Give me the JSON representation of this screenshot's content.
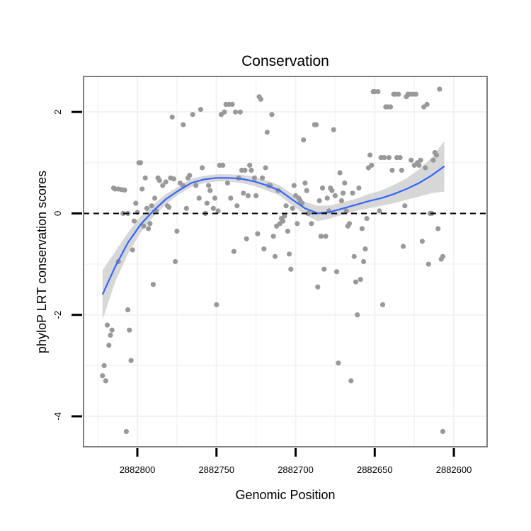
{
  "chart_data": {
    "type": "scatter",
    "title": "Conservation",
    "xlabel": "Genomic Position",
    "ylabel": "phyloP LRT conservation scores",
    "x_reversed": true,
    "xlim": [
      2882834,
      2882579
    ],
    "ylim": [
      -4.6,
      2.7
    ],
    "x_ticks": [
      2882800,
      2882750,
      2882700,
      2882650,
      2882600
    ],
    "x_tick_labels": [
      "2882800",
      "2882750",
      "2882700",
      "2882650",
      "2882600"
    ],
    "y_ticks": [
      2,
      0,
      -2,
      -4
    ],
    "y_tick_labels": [
      "2",
      "0",
      "-2",
      "-4"
    ],
    "reference_line": 0,
    "grid": true,
    "colors": {
      "points": "#999999",
      "smooth": "#3366ff",
      "band": "#d3d3d3",
      "panel_border": "#7f7f7f",
      "grid": "#f2f2f2"
    },
    "points": [
      [
        2882822,
        -3.2
      ],
      [
        2882821,
        -3.0
      ],
      [
        2882820,
        -3.3
      ],
      [
        2882819,
        -2.2
      ],
      [
        2882818,
        -2.6
      ],
      [
        2882817,
        -2.4
      ],
      [
        2882816,
        -2.3
      ],
      [
        2882815,
        0.5
      ],
      [
        2882814,
        0.48
      ],
      [
        2882812,
        0.48
      ],
      [
        2882810,
        0.47
      ],
      [
        2882808,
        0.46
      ],
      [
        2882812,
        -0.95
      ],
      [
        2882809,
        0.0
      ],
      [
        2882806,
        0.0
      ],
      [
        2882807,
        -4.3
      ],
      [
        2882806,
        -1.9
      ],
      [
        2882805,
        -2.3
      ],
      [
        2882804,
        -2.9
      ],
      [
        2882803,
        -0.72
      ],
      [
        2882802,
        -0.15
      ],
      [
        2882801,
        0.2
      ],
      [
        2882800,
        0.02
      ],
      [
        2882799,
        1.0
      ],
      [
        2882798,
        1.0
      ],
      [
        2882797,
        0.48
      ],
      [
        2882796,
        -0.25
      ],
      [
        2882795,
        0.7
      ],
      [
        2882794,
        0.1
      ],
      [
        2882793,
        -0.3
      ],
      [
        2882792,
        -0.2
      ],
      [
        2882791,
        0.15
      ],
      [
        2882790,
        -1.4
      ],
      [
        2882789,
        0.3
      ],
      [
        2882788,
        0.05
      ],
      [
        2882787,
        0.7
      ],
      [
        2882786,
        0.65
      ],
      [
        2882784,
        0.55
      ],
      [
        2882782,
        0.62
      ],
      [
        2882781,
        0.15
      ],
      [
        2882780,
        0.12
      ],
      [
        2882779,
        0.7
      ],
      [
        2882778,
        1.9
      ],
      [
        2882777,
        0.68
      ],
      [
        2882776,
        -0.95
      ],
      [
        2882775,
        -0.35
      ],
      [
        2882773,
        0.6
      ],
      [
        2882771,
        0.55
      ],
      [
        2882771,
        1.75
      ],
      [
        2882769,
        0.1
      ],
      [
        2882768,
        0.7
      ],
      [
        2882767,
        0.75
      ],
      [
        2882765,
        1.95
      ],
      [
        2882763,
        0.55
      ],
      [
        2882761,
        0.3
      ],
      [
        2882760,
        2.05
      ],
      [
        2882759,
        0.9
      ],
      [
        2882757,
        0.0
      ],
      [
        2882756,
        0.2
      ],
      [
        2882755,
        0.55
      ],
      [
        2882754,
        0.45
      ],
      [
        2882752,
        0.1
      ],
      [
        2882751,
        0.3
      ],
      [
        2882750,
        -1.8
      ],
      [
        2882749,
        0.05
      ],
      [
        2882748,
        0.95
      ],
      [
        2882747,
        1.95
      ],
      [
        2882746,
        0.95
      ],
      [
        2882745,
        2.0
      ],
      [
        2882744,
        2.15
      ],
      [
        2882743,
        0.6
      ],
      [
        2882742,
        2.15
      ],
      [
        2882741,
        0.3
      ],
      [
        2882740,
        2.15
      ],
      [
        2882739,
        -0.75
      ],
      [
        2882738,
        2.0
      ],
      [
        2882737,
        0.15
      ],
      [
        2882736,
        0.7
      ],
      [
        2882735,
        2.0
      ],
      [
        2882734,
        0.85
      ],
      [
        2882733,
        0.4
      ],
      [
        2882732,
        0.85
      ],
      [
        2882731,
        -0.5
      ],
      [
        2882730,
        0.35
      ],
      [
        2882729,
        0.95
      ],
      [
        2882728,
        0.85
      ],
      [
        2882726,
        0.7
      ],
      [
        2882725,
        0.35
      ],
      [
        2882724,
        -0.4
      ],
      [
        2882723,
        2.3
      ],
      [
        2882722,
        2.25
      ],
      [
        2882721,
        0.7
      ],
      [
        2882720,
        -0.7
      ],
      [
        2882719,
        0.9
      ],
      [
        2882718,
        1.6
      ],
      [
        2882717,
        0.55
      ],
      [
        2882716,
        0.55
      ],
      [
        2882715,
        1.95
      ],
      [
        2882714,
        -0.45
      ],
      [
        2882713,
        -0.85
      ],
      [
        2882712,
        -0.25
      ],
      [
        2882711,
        0.45
      ],
      [
        2882710,
        -0.2
      ],
      [
        2882709,
        -0.1
      ],
      [
        2882708,
        -0.15
      ],
      [
        2882707,
        -0.05
      ],
      [
        2882706,
        0.15
      ],
      [
        2882705,
        -0.35
      ],
      [
        2882704,
        -0.8
      ],
      [
        2882703,
        -1.1
      ],
      [
        2882702,
        0.1
      ],
      [
        2882701,
        0.55
      ],
      [
        2882700,
        0.35
      ],
      [
        2882699,
        -0.2
      ],
      [
        2882698,
        0.3
      ],
      [
        2882697,
        0.25
      ],
      [
        2882696,
        0.2
      ],
      [
        2882695,
        1.45
      ],
      [
        2882694,
        0.6
      ],
      [
        2882693,
        0.45
      ],
      [
        2882692,
        0.0
      ],
      [
        2882690,
        -0.2
      ],
      [
        2882688,
        1.75
      ],
      [
        2882687,
        1.75
      ],
      [
        2882686,
        -1.45
      ],
      [
        2882685,
        0.25
      ],
      [
        2882684,
        -0.45
      ],
      [
        2882683,
        0.5
      ],
      [
        2882682,
        -1.1
      ],
      [
        2882681,
        -0.45
      ],
      [
        2882680,
        0.3
      ],
      [
        2882679,
        0.05
      ],
      [
        2882678,
        0.5
      ],
      [
        2882677,
        0.45
      ],
      [
        2882676,
        1.65
      ],
      [
        2882675,
        0.35
      ],
      [
        2882674,
        -1.15
      ],
      [
        2882673,
        -2.95
      ],
      [
        2882672,
        0.8
      ],
      [
        2882671,
        0.25
      ],
      [
        2882670,
        0.4
      ],
      [
        2882669,
        0.6
      ],
      [
        2882668,
        0.05
      ],
      [
        2882667,
        -0.25
      ],
      [
        2882666,
        -0.2
      ],
      [
        2882665,
        -3.3
      ],
      [
        2882664,
        0.4
      ],
      [
        2882663,
        -0.85
      ],
      [
        2882662,
        -1.35
      ],
      [
        2882661,
        -2.0
      ],
      [
        2882660,
        0.5
      ],
      [
        2882659,
        -1.3
      ],
      [
        2882658,
        -0.3
      ],
      [
        2882657,
        -0.95
      ],
      [
        2882656,
        -0.7
      ],
      [
        2882655,
        -0.1
      ],
      [
        2882654,
        0.9
      ],
      [
        2882653,
        1.15
      ],
      [
        2882652,
        0.95
      ],
      [
        2882651,
        2.4
      ],
      [
        2882650,
        2.4
      ],
      [
        2882648,
        2.4
      ],
      [
        2882647,
        0.05
      ],
      [
        2882646,
        1.1
      ],
      [
        2882645,
        -1.8
      ],
      [
        2882644,
        1.1
      ],
      [
        2882643,
        2.1
      ],
      [
        2882642,
        2.1
      ],
      [
        2882641,
        1.1
      ],
      [
        2882640,
        2.1
      ],
      [
        2882639,
        0.85
      ],
      [
        2882638,
        2.35
      ],
      [
        2882637,
        2.35
      ],
      [
        2882636,
        1.1
      ],
      [
        2882635,
        2.35
      ],
      [
        2882634,
        1.1
      ],
      [
        2882633,
        0.85
      ],
      [
        2882632,
        -0.65
      ],
      [
        2882631,
        0.15
      ],
      [
        2882630,
        2.3
      ],
      [
        2882629,
        2.35
      ],
      [
        2882628,
        2.35
      ],
      [
        2882627,
        1.05
      ],
      [
        2882626,
        2.35
      ],
      [
        2882625,
        0.95
      ],
      [
        2882624,
        2.35
      ],
      [
        2882623,
        1.0
      ],
      [
        2882622,
        0.95
      ],
      [
        2882621,
        1.05
      ],
      [
        2882620,
        -0.55
      ],
      [
        2882619,
        2.1
      ],
      [
        2882618,
        0.9
      ],
      [
        2882617,
        2.15
      ],
      [
        2882616,
        -1.0
      ],
      [
        2882615,
        0.0
      ],
      [
        2882614,
        0.0
      ],
      [
        2882613,
        1.05
      ],
      [
        2882612,
        1.2
      ],
      [
        2882611,
        1.15
      ],
      [
        2882610,
        -0.3
      ],
      [
        2882609,
        2.45
      ],
      [
        2882608,
        -0.9
      ],
      [
        2882607,
        -0.85
      ],
      [
        2882607,
        -4.3
      ]
    ],
    "smooth": {
      "x": [
        2882822,
        2882814,
        2882806,
        2882798,
        2882790,
        2882782,
        2882774,
        2882766,
        2882758,
        2882750,
        2882742,
        2882734,
        2882726,
        2882718,
        2882710,
        2882702,
        2882694,
        2882686,
        2882678,
        2882670,
        2882662,
        2882654,
        2882646,
        2882638,
        2882630,
        2882622,
        2882614,
        2882606
      ],
      "y": [
        -1.6,
        -1.05,
        -0.58,
        -0.22,
        0.05,
        0.28,
        0.45,
        0.6,
        0.67,
        0.7,
        0.7,
        0.68,
        0.63,
        0.55,
        0.45,
        0.27,
        0.1,
        0.0,
        0.03,
        0.1,
        0.17,
        0.24,
        0.3,
        0.38,
        0.48,
        0.6,
        0.75,
        0.93
      ],
      "lower": [
        -2.1,
        -1.35,
        -0.8,
        -0.38,
        -0.07,
        0.18,
        0.37,
        0.52,
        0.6,
        0.63,
        0.63,
        0.6,
        0.54,
        0.45,
        0.35,
        0.16,
        -0.03,
        -0.15,
        -0.1,
        -0.02,
        0.05,
        0.1,
        0.15,
        0.2,
        0.27,
        0.33,
        0.4,
        0.43
      ],
      "upper": [
        -1.12,
        -0.75,
        -0.38,
        -0.06,
        0.17,
        0.38,
        0.53,
        0.68,
        0.74,
        0.77,
        0.77,
        0.76,
        0.72,
        0.65,
        0.55,
        0.38,
        0.23,
        0.15,
        0.16,
        0.22,
        0.29,
        0.38,
        0.45,
        0.56,
        0.69,
        0.87,
        1.1,
        1.43
      ]
    }
  }
}
